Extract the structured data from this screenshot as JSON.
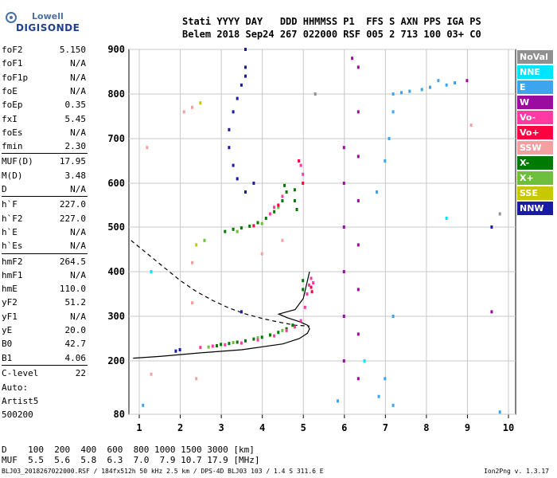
{
  "logo": {
    "line1": "Lowell",
    "line2": "DIGISONDE"
  },
  "header": {
    "row1": "Stati YYYY DAY   DDD HHMMSS P1  FFS S AXN PPS IGA PS",
    "row2": "Belem 2018 Sep24 267 022000 RSF 005 2 713 100 03+ C0"
  },
  "params": [
    {
      "label": "foF2",
      "value": "5.150"
    },
    {
      "label": "foF1",
      "value": "N/A"
    },
    {
      "label": "foF1p",
      "value": "N/A"
    },
    {
      "label": "foE",
      "value": "N/A"
    },
    {
      "label": "foEp",
      "value": "0.35"
    },
    {
      "label": "fxI",
      "value": "5.45"
    },
    {
      "label": "foEs",
      "value": "N/A"
    },
    {
      "label": "fmin",
      "value": "2.30"
    },
    {
      "label": "MUF(D)",
      "value": "17.95"
    },
    {
      "label": "M(D)",
      "value": "3.48"
    },
    {
      "label": "D",
      "value": "N/A"
    },
    {
      "label": "h`F",
      "value": "227.0"
    },
    {
      "label": "h`F2",
      "value": "227.0"
    },
    {
      "label": "h`E",
      "value": "N/A"
    },
    {
      "label": "h`Es",
      "value": "N/A"
    },
    {
      "label": "hmF2",
      "value": "264.5"
    },
    {
      "label": "hmF1",
      "value": "N/A"
    },
    {
      "label": "hmE",
      "value": "110.0"
    },
    {
      "label": "yF2",
      "value": "51.2"
    },
    {
      "label": "yF1",
      "value": "N/A"
    },
    {
      "label": "yE",
      "value": "20.0"
    },
    {
      "label": "B0",
      "value": "42.7"
    },
    {
      "label": "B1",
      "value": "4.06"
    },
    {
      "label": "C-level",
      "value": "22"
    }
  ],
  "auto": {
    "line1": "Auto:",
    "line2": "Artist5",
    "line3": "500200"
  },
  "legend": [
    {
      "label": "NoVal",
      "color": "#909090"
    },
    {
      "label": "NNE",
      "color": "#00e5ff"
    },
    {
      "label": "E",
      "color": "#3da5f0"
    },
    {
      "label": "W",
      "color": "#9c0ba0"
    },
    {
      "label": "Vo-",
      "color": "#ff3aa0"
    },
    {
      "label": "Vo+",
      "color": "#ff0040"
    },
    {
      "label": "SSW",
      "color": "#f5a0a0"
    },
    {
      "label": "X-",
      "color": "#007a00"
    },
    {
      "label": "X+",
      "color": "#6fbf3f"
    },
    {
      "label": "SSE",
      "color": "#c8c800"
    },
    {
      "label": "NNW",
      "color": "#1a1aa8"
    }
  ],
  "bottom": {
    "row1": "D    100  200  400  600  800 1000 1500 3000 [km]",
    "row2": "MUF  5.5  5.6  5.8  6.3  7.0  7.9 10.7 17.9 [MHz]"
  },
  "footer": {
    "left": "BLJ03_2018267022000.RSF / 184fx512h 50 kHz 2.5 km / DPS-4D BLJ03 103 / 1.4 S 311.6 E",
    "right": "Ion2Png v. 1.3.17"
  },
  "chart_data": {
    "type": "scatter",
    "xlabel": "",
    "ylabel": "",
    "xlim": [
      0.8,
      10.1
    ],
    "ylim": [
      80,
      900
    ],
    "xticks": [
      1,
      2,
      3,
      4,
      5,
      6,
      7,
      8,
      9,
      10
    ],
    "yticks": [
      80,
      200,
      300,
      400,
      500,
      600,
      700,
      800,
      900
    ],
    "grid": true,
    "series": [
      {
        "name": "X-",
        "color": "#007a00",
        "points": [
          [
            2.9,
            234
          ],
          [
            3.0,
            237
          ],
          [
            3.2,
            239
          ],
          [
            3.4,
            242
          ],
          [
            3.6,
            245
          ],
          [
            3.8,
            249
          ],
          [
            4.0,
            253
          ],
          [
            4.2,
            258
          ],
          [
            4.4,
            264
          ],
          [
            4.6,
            272
          ],
          [
            4.75,
            280
          ],
          [
            3.1,
            490
          ],
          [
            3.3,
            495
          ],
          [
            3.5,
            498
          ],
          [
            3.7,
            502
          ],
          [
            3.9,
            510
          ],
          [
            4.1,
            520
          ],
          [
            4.3,
            535
          ],
          [
            4.5,
            560
          ],
          [
            4.6,
            580
          ],
          [
            4.55,
            595
          ],
          [
            4.8,
            585
          ],
          [
            4.8,
            560
          ],
          [
            4.85,
            540
          ],
          [
            5.0,
            380
          ],
          [
            5.0,
            360
          ]
        ]
      },
      {
        "name": "X+",
        "color": "#6fbf3f",
        "points": [
          [
            2.7,
            231
          ],
          [
            3.3,
            241
          ],
          [
            3.9,
            252
          ],
          [
            4.5,
            268
          ],
          [
            3.4,
            490
          ],
          [
            4.4,
            545
          ],
          [
            4.0,
            508
          ],
          [
            2.6,
            470
          ]
        ]
      },
      {
        "name": "Vo-",
        "color": "#ff3aa0",
        "points": [
          [
            2.5,
            230
          ],
          [
            2.8,
            233
          ],
          [
            3.1,
            236
          ],
          [
            3.5,
            240
          ],
          [
            3.9,
            247
          ],
          [
            4.3,
            256
          ],
          [
            4.6,
            268
          ],
          [
            4.8,
            276
          ],
          [
            4.95,
            290
          ],
          [
            5.05,
            320
          ],
          [
            5.1,
            350
          ],
          [
            5.15,
            370
          ],
          [
            5.2,
            385
          ],
          [
            5.25,
            375
          ],
          [
            4.2,
            530
          ],
          [
            4.3,
            545
          ],
          [
            4.5,
            570
          ],
          [
            4.95,
            640
          ],
          [
            5.0,
            620
          ]
        ]
      },
      {
        "name": "Vo+",
        "color": "#ff0040",
        "points": [
          [
            5.2,
            365
          ],
          [
            5.22,
            355
          ],
          [
            4.4,
            550
          ],
          [
            4.9,
            650
          ],
          [
            5.0,
            600
          ],
          [
            3.8,
            503
          ]
        ]
      },
      {
        "name": "W",
        "color": "#9c0ba0",
        "points": [
          [
            6.0,
            200
          ],
          [
            6.0,
            300
          ],
          [
            6.0,
            400
          ],
          [
            6.0,
            500
          ],
          [
            6.0,
            600
          ],
          [
            6.0,
            680
          ],
          [
            6.35,
            160
          ],
          [
            6.35,
            260
          ],
          [
            6.35,
            360
          ],
          [
            6.35,
            460
          ],
          [
            6.35,
            560
          ],
          [
            6.35,
            660
          ],
          [
            6.35,
            760
          ],
          [
            6.35,
            860
          ],
          [
            9.0,
            830
          ],
          [
            9.6,
            310
          ],
          [
            6.2,
            880
          ]
        ]
      },
      {
        "name": "E",
        "color": "#3da5f0",
        "points": [
          [
            7.2,
            800
          ],
          [
            7.4,
            803
          ],
          [
            7.6,
            806
          ],
          [
            7.9,
            810
          ],
          [
            8.1,
            815
          ],
          [
            8.3,
            830
          ],
          [
            8.5,
            820
          ],
          [
            8.7,
            825
          ],
          [
            7.1,
            700
          ],
          [
            7.2,
            760
          ],
          [
            7.0,
            160
          ],
          [
            7.2,
            300
          ],
          [
            7.2,
            100
          ],
          [
            6.85,
            120
          ],
          [
            6.8,
            580
          ],
          [
            7.0,
            650
          ],
          [
            5.85,
            110
          ],
          [
            9.8,
            85
          ],
          [
            1.1,
            100
          ]
        ]
      },
      {
        "name": "NNW",
        "color": "#1a1aa8",
        "points": [
          [
            3.6,
            900
          ],
          [
            3.6,
            860
          ],
          [
            3.6,
            840
          ],
          [
            3.5,
            820
          ],
          [
            3.4,
            790
          ],
          [
            3.3,
            760
          ],
          [
            3.2,
            720
          ],
          [
            3.2,
            680
          ],
          [
            3.3,
            640
          ],
          [
            3.4,
            610
          ],
          [
            3.6,
            580
          ],
          [
            3.8,
            600
          ],
          [
            2.0,
            225
          ],
          [
            1.9,
            222
          ],
          [
            9.6,
            500
          ],
          [
            3.5,
            310
          ]
        ]
      },
      {
        "name": "SSW",
        "color": "#f5a0a0",
        "points": [
          [
            2.1,
            760
          ],
          [
            2.3,
            770
          ],
          [
            1.2,
            680
          ],
          [
            2.3,
            330
          ],
          [
            1.3,
            170
          ],
          [
            2.4,
            160
          ],
          [
            4.5,
            470
          ],
          [
            4.0,
            440
          ],
          [
            9.1,
            730
          ],
          [
            2.3,
            420
          ]
        ]
      },
      {
        "name": "NNE",
        "color": "#00e5ff",
        "points": [
          [
            1.3,
            400
          ],
          [
            8.5,
            520
          ],
          [
            6.5,
            200
          ]
        ]
      },
      {
        "name": "SSE",
        "color": "#c8c800",
        "points": [
          [
            2.4,
            460
          ],
          [
            2.5,
            780
          ]
        ]
      },
      {
        "name": "NoVal",
        "color": "#909090",
        "points": [
          [
            5.3,
            800
          ],
          [
            9.8,
            530
          ]
        ]
      }
    ],
    "profile_solid": [
      [
        0.85,
        206
      ],
      [
        1.5,
        210
      ],
      [
        2.5,
        218
      ],
      [
        3.5,
        225
      ],
      [
        4.5,
        238
      ],
      [
        4.9,
        250
      ],
      [
        5.1,
        262
      ],
      [
        5.15,
        272
      ],
      [
        5.1,
        280
      ],
      [
        4.9,
        288
      ],
      [
        4.6,
        297
      ],
      [
        4.4,
        305
      ],
      [
        4.8,
        315
      ],
      [
        5.0,
        340
      ],
      [
        5.1,
        380
      ],
      [
        5.15,
        400
      ]
    ],
    "profile_dashed": [
      [
        0.8,
        470
      ],
      [
        1.2,
        440
      ],
      [
        1.6,
        410
      ],
      [
        2.0,
        380
      ],
      [
        2.4,
        355
      ],
      [
        2.8,
        335
      ],
      [
        3.2,
        318
      ],
      [
        3.6,
        305
      ],
      [
        4.0,
        295
      ],
      [
        4.4,
        287
      ],
      [
        4.8,
        280
      ],
      [
        5.15,
        278
      ]
    ]
  }
}
